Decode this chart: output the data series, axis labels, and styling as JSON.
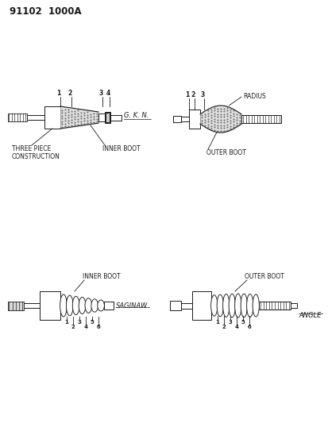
{
  "title": "91102  1000A",
  "bg": "#ffffff",
  "dc": "#1a1a1a",
  "figsize": [
    4.14,
    5.33
  ],
  "dpi": 100,
  "labels": {
    "three_piece": "THREE PIECE\nCONSTRUCTION",
    "inner_boot_top": "INNER BOOT",
    "gkn": "G. K. N.",
    "outer_boot_top": "OUTER BOOT",
    "radius": "RADIUS",
    "inner_boot_bot": "INNER BOOT",
    "saginaw": "SAGINAW",
    "outer_boot_bot": "OUTER BOOT",
    "angle": "ANGLE"
  }
}
